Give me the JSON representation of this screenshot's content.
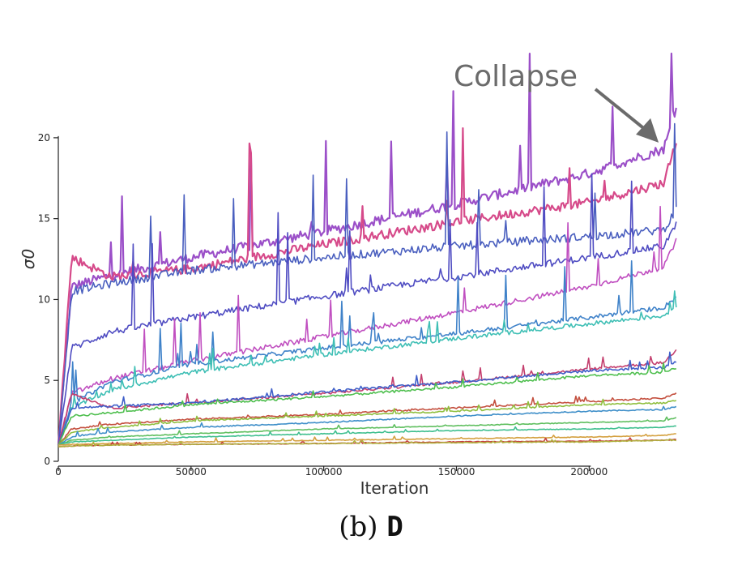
{
  "chart_data": {
    "type": "line",
    "xlabel": "Iteration",
    "ylabel": "σ0",
    "xlim": [
      0,
      235000
    ],
    "ylim": [
      0,
      22.5
    ],
    "xticks": [
      0,
      50000,
      100000,
      150000,
      200000
    ],
    "xtick_labels": [
      "0",
      "50000",
      "100000",
      "150000",
      "200000"
    ],
    "yticks": [
      0,
      5,
      10,
      15,
      20
    ],
    "ytick_labels": [
      "0",
      "5",
      "10",
      "15",
      "20"
    ],
    "annotation": {
      "text": "Collapse",
      "x": 228000,
      "y": 19.5
    },
    "grid": false,
    "series": [
      {
        "color": "#9b4fc8",
        "values": [
          [
            0,
            1
          ],
          [
            5000,
            10.8
          ],
          [
            20000,
            11.5
          ],
          [
            50000,
            12.6
          ],
          [
            100000,
            14.2
          ],
          [
            150000,
            15.9
          ],
          [
            200000,
            17.8
          ],
          [
            228000,
            19.3
          ],
          [
            233000,
            21.7
          ]
        ]
      },
      {
        "color": "#d64a8a",
        "values": [
          [
            0,
            1
          ],
          [
            5000,
            12.6
          ],
          [
            20000,
            11.4
          ],
          [
            50000,
            11.9
          ],
          [
            100000,
            13.4
          ],
          [
            150000,
            14.8
          ],
          [
            200000,
            16.0
          ],
          [
            228000,
            17.2
          ],
          [
            233000,
            19.9
          ]
        ]
      },
      {
        "color": "#4a5fbf",
        "values": [
          [
            0,
            1
          ],
          [
            5000,
            10.5
          ],
          [
            20000,
            11.0
          ],
          [
            50000,
            11.8
          ],
          [
            100000,
            12.6
          ],
          [
            150000,
            13.3
          ],
          [
            200000,
            13.9
          ],
          [
            228000,
            14.3
          ],
          [
            233000,
            15.6
          ]
        ]
      },
      {
        "color": "#4f4cc2",
        "values": [
          [
            0,
            1
          ],
          [
            5000,
            7.0
          ],
          [
            20000,
            8.0
          ],
          [
            50000,
            8.9
          ],
          [
            100000,
            10.2
          ],
          [
            150000,
            11.4
          ],
          [
            200000,
            12.6
          ],
          [
            228000,
            13.3
          ],
          [
            233000,
            14.7
          ]
        ]
      },
      {
        "color": "#c04fc0",
        "values": [
          [
            0,
            1
          ],
          [
            5000,
            4.2
          ],
          [
            20000,
            5.1
          ],
          [
            50000,
            6.2
          ],
          [
            100000,
            7.7
          ],
          [
            150000,
            9.2
          ],
          [
            200000,
            10.8
          ],
          [
            228000,
            12.0
          ],
          [
            233000,
            13.7
          ]
        ]
      },
      {
        "color": "#3f82c9",
        "values": [
          [
            0,
            1
          ],
          [
            5000,
            3.6
          ],
          [
            20000,
            4.9
          ],
          [
            50000,
            6.0
          ],
          [
            100000,
            7.0
          ],
          [
            150000,
            7.9
          ],
          [
            200000,
            8.9
          ],
          [
            228000,
            9.5
          ],
          [
            233000,
            10.2
          ]
        ]
      },
      {
        "color": "#3fbfb5",
        "values": [
          [
            0,
            1
          ],
          [
            5000,
            3.3
          ],
          [
            20000,
            4.4
          ],
          [
            50000,
            5.5
          ],
          [
            100000,
            6.6
          ],
          [
            150000,
            7.6
          ],
          [
            200000,
            8.5
          ],
          [
            228000,
            9.0
          ],
          [
            233000,
            9.6
          ]
        ]
      },
      {
        "color": "#c43f6e",
        "values": [
          [
            0,
            1
          ],
          [
            5000,
            4.2
          ],
          [
            20000,
            3.3
          ],
          [
            50000,
            3.6
          ],
          [
            100000,
            4.2
          ],
          [
            150000,
            4.9
          ],
          [
            200000,
            5.7
          ],
          [
            228000,
            6.1
          ],
          [
            233000,
            6.9
          ]
        ]
      },
      {
        "color": "#3f5fc9",
        "values": [
          [
            0,
            1
          ],
          [
            5000,
            3.3
          ],
          [
            20000,
            3.4
          ],
          [
            50000,
            3.6
          ],
          [
            100000,
            4.3
          ],
          [
            150000,
            4.9
          ],
          [
            200000,
            5.6
          ],
          [
            228000,
            5.8
          ],
          [
            233000,
            6.2
          ]
        ]
      },
      {
        "color": "#4fbf4f",
        "values": [
          [
            0,
            1
          ],
          [
            5000,
            2.8
          ],
          [
            20000,
            3.0
          ],
          [
            50000,
            3.5
          ],
          [
            100000,
            4.0
          ],
          [
            150000,
            4.6
          ],
          [
            200000,
            5.3
          ],
          [
            228000,
            5.5
          ],
          [
            233000,
            5.8
          ]
        ]
      },
      {
        "color": "#c4503f",
        "values": [
          [
            0,
            1
          ],
          [
            5000,
            2.0
          ],
          [
            20000,
            2.3
          ],
          [
            50000,
            2.6
          ],
          [
            100000,
            2.9
          ],
          [
            150000,
            3.3
          ],
          [
            200000,
            3.7
          ],
          [
            228000,
            3.9
          ],
          [
            233000,
            4.2
          ]
        ]
      },
      {
        "color": "#8fbf3f",
        "values": [
          [
            0,
            1
          ],
          [
            5000,
            1.8
          ],
          [
            20000,
            2.1
          ],
          [
            50000,
            2.5
          ],
          [
            100000,
            2.8
          ],
          [
            150000,
            3.1
          ],
          [
            200000,
            3.5
          ],
          [
            228000,
            3.6
          ],
          [
            233000,
            3.8
          ]
        ]
      },
      {
        "color": "#3f8fc9",
        "values": [
          [
            0,
            1
          ],
          [
            5000,
            1.5
          ],
          [
            20000,
            1.8
          ],
          [
            50000,
            2.1
          ],
          [
            100000,
            2.4
          ],
          [
            150000,
            2.8
          ],
          [
            200000,
            3.1
          ],
          [
            228000,
            3.2
          ],
          [
            233000,
            3.4
          ]
        ]
      },
      {
        "color": "#5fbf5f",
        "values": [
          [
            0,
            1
          ],
          [
            5000,
            1.3
          ],
          [
            20000,
            1.5
          ],
          [
            50000,
            1.7
          ],
          [
            100000,
            2.0
          ],
          [
            150000,
            2.2
          ],
          [
            200000,
            2.4
          ],
          [
            228000,
            2.5
          ],
          [
            233000,
            2.7
          ]
        ]
      },
      {
        "color": "#3fbf8f",
        "values": [
          [
            0,
            1
          ],
          [
            5000,
            1.2
          ],
          [
            20000,
            1.3
          ],
          [
            50000,
            1.5
          ],
          [
            100000,
            1.7
          ],
          [
            150000,
            1.9
          ],
          [
            200000,
            2.0
          ],
          [
            228000,
            2.1
          ],
          [
            233000,
            2.2
          ]
        ]
      },
      {
        "color": "#d4a03f",
        "values": [
          [
            0,
            1
          ],
          [
            5000,
            1.05
          ],
          [
            20000,
            1.1
          ],
          [
            50000,
            1.2
          ],
          [
            100000,
            1.3
          ],
          [
            150000,
            1.4
          ],
          [
            200000,
            1.5
          ],
          [
            228000,
            1.6
          ],
          [
            233000,
            1.7
          ]
        ]
      },
      {
        "color": "#c43f3f",
        "values": [
          [
            0,
            0.9
          ],
          [
            5000,
            0.95
          ],
          [
            20000,
            1.0
          ],
          [
            50000,
            1.05
          ],
          [
            100000,
            1.1
          ],
          [
            150000,
            1.2
          ],
          [
            200000,
            1.25
          ],
          [
            228000,
            1.3
          ],
          [
            233000,
            1.35
          ]
        ]
      },
      {
        "color": "#b0b03f",
        "values": [
          [
            0,
            0.9
          ],
          [
            5000,
            0.95
          ],
          [
            20000,
            1.0
          ],
          [
            50000,
            1.05
          ],
          [
            100000,
            1.1
          ],
          [
            150000,
            1.15
          ],
          [
            200000,
            1.2
          ],
          [
            228000,
            1.3
          ],
          [
            233000,
            1.3
          ]
        ]
      }
    ]
  },
  "caption": {
    "prefix": "(b)",
    "label": "D"
  }
}
